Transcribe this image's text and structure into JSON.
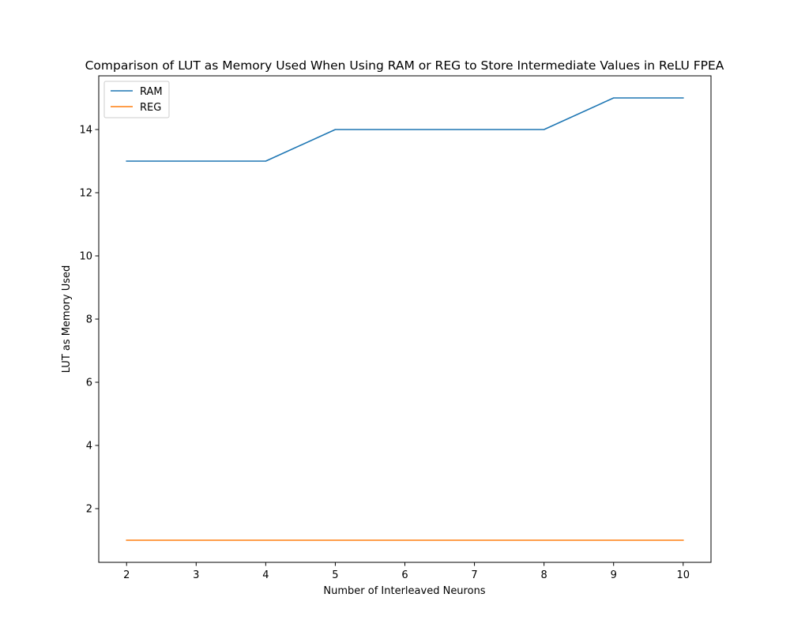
{
  "chart_data": {
    "type": "line",
    "title": "Comparison of LUT as Memory Used When Using RAM or REG to Store Intermediate Values in ReLU FPEA",
    "xlabel": "Number of Interleaved Neurons",
    "ylabel": "LUT as Memory Used",
    "x": [
      2,
      3,
      4,
      5,
      6,
      7,
      8,
      9,
      10
    ],
    "xlim": [
      1.6,
      10.4
    ],
    "ylim": [
      0.3,
      15.7
    ],
    "xticks": [
      2,
      3,
      4,
      5,
      6,
      7,
      8,
      9,
      10
    ],
    "yticks": [
      2,
      4,
      6,
      8,
      10,
      12,
      14
    ],
    "grid": false,
    "legend_position": "upper-left",
    "series": [
      {
        "name": "RAM",
        "color": "#1f77b4",
        "values": [
          13,
          13,
          13,
          14,
          14,
          14,
          14,
          15,
          15
        ]
      },
      {
        "name": "REG",
        "color": "#ff7f0e",
        "values": [
          1,
          1,
          1,
          1,
          1,
          1,
          1,
          1,
          1
        ]
      }
    ]
  }
}
